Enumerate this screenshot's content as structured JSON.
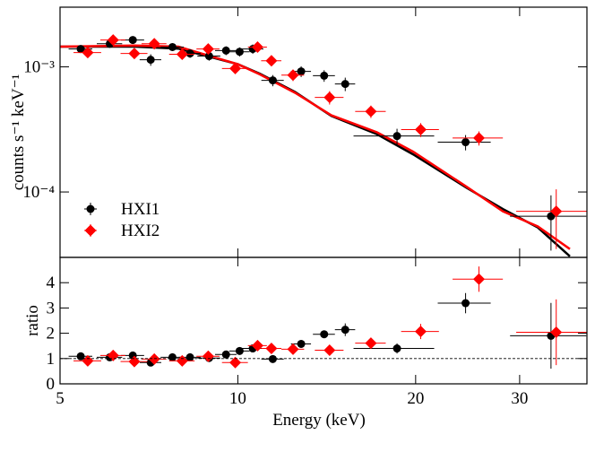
{
  "chart_data": [
    {
      "type": "scatter",
      "ylabel": "counts s⁻¹ keV⁻¹",
      "xlog": true,
      "ylog": true,
      "xlim": [
        5,
        39
      ],
      "ylim": [
        3e-05,
        0.003
      ],
      "xticks": [
        5,
        10,
        20,
        30
      ],
      "yticks": [
        {
          "value": 0.001,
          "label": "10⁻³"
        },
        {
          "value": 0.0001,
          "label": "10⁻⁴"
        }
      ],
      "legend": "lower-left",
      "series": [
        {
          "name": "HXI1",
          "color": "#000000",
          "marker": "circle",
          "x": [
            5.42,
            6.07,
            6.64,
            7.12,
            7.75,
            8.3,
            8.94,
            9.55,
            10.07,
            10.6,
            11.46,
            12.8,
            14.0,
            15.2,
            18.6,
            24.3,
            33.9
          ],
          "xerr": [
            0.25,
            0.3,
            0.3,
            0.3,
            0.35,
            0.35,
            0.4,
            0.4,
            0.4,
            0.45,
            0.5,
            0.5,
            0.6,
            0.6,
            2.9,
            2.5,
            5
          ],
          "values": [
            0.00139,
            0.00153,
            0.00164,
            0.00114,
            0.00144,
            0.00128,
            0.00122,
            0.00135,
            0.00132,
            0.00139,
            0.00078,
            0.00092,
            0.00085,
            0.00073,
            0.00028,
            0.00025,
            6.4e-05
          ],
          "yerr": [
            0.0001,
            0.00011,
            0.00011,
            0.00012,
            0.0001,
            0.0001,
            0.0001,
            0.00011,
            0.00011,
            0.00012,
            8e-05,
            9e-05,
            9e-05,
            9e-05,
            4e-05,
            3.5e-05,
            3e-05
          ]
        },
        {
          "name": "HXI2",
          "color": "#ff0000",
          "marker": "diamond",
          "x": [
            5.57,
            6.15,
            6.68,
            7.22,
            8.05,
            8.91,
            9.9,
            10.8,
            11.4,
            12.4,
            14.3,
            16.8,
            20.4,
            25.6,
            34.6
          ],
          "xerr": [
            0.3,
            0.3,
            0.35,
            0.35,
            0.4,
            0.4,
            0.5,
            0.4,
            0.45,
            0.55,
            0.8,
            1.0,
            1.5,
            2.5,
            5
          ],
          "values": [
            0.0013,
            0.00164,
            0.00128,
            0.00153,
            0.00126,
            0.00139,
            0.00097,
            0.00144,
            0.00112,
            0.00086,
            0.00057,
            0.00044,
            0.000315,
            0.00027,
            7e-05
          ],
          "yerr": [
            0.0001,
            0.00011,
            0.0001,
            0.00011,
            0.0001,
            0.0001,
            9e-05,
            0.00012,
            0.0001,
            9e-05,
            7e-05,
            5e-05,
            4e-05,
            3.5e-05,
            3.5e-05
          ]
        }
      ],
      "model_curves": [
        {
          "color": "#000000",
          "x": [
            5,
            6.69,
            7.93,
            10.0,
            10.9,
            12.5,
            14.4,
            17.2,
            19.8,
            24.4,
            28.1,
            32.2,
            36.5
          ],
          "values": [
            0.00145,
            0.00145,
            0.0014,
            0.00105,
            0.00088,
            0.00063,
            0.000405,
            0.00029,
            0.0002,
            0.000108,
            7.3e-05,
            5.2e-05,
            3.06e-05
          ]
        },
        {
          "color": "#ff0000",
          "x": [
            5,
            6.69,
            7.93,
            10.0,
            10.9,
            12.5,
            14.4,
            17.2,
            19.8,
            24.4,
            28.1,
            32.2,
            36.5
          ],
          "values": [
            0.00145,
            0.00148,
            0.00145,
            0.00105,
            0.00087,
            0.00062,
            0.00041,
            0.0003,
            0.00021,
            0.00011,
            7e-05,
            5.3e-05,
            3.5e-05
          ]
        }
      ]
    },
    {
      "type": "scatter",
      "xlabel": "Energy (keV)",
      "ylabel": "ratio",
      "xlog": true,
      "xlim": [
        5,
        39
      ],
      "ylim": [
        0,
        5
      ],
      "xticks": [
        5,
        10,
        20,
        30
      ],
      "yticks": [
        0,
        1,
        2,
        3,
        4
      ],
      "ref_line": 1,
      "series": [
        {
          "color": "#000000",
          "marker": "circle",
          "x": [
            5.42,
            6.07,
            6.64,
            7.12,
            7.75,
            8.3,
            8.94,
            9.55,
            10.07,
            10.6,
            11.46,
            12.8,
            14.0,
            15.2,
            18.6,
            24.3,
            33.9
          ],
          "xerr": [
            0.25,
            0.3,
            0.3,
            0.3,
            0.35,
            0.35,
            0.4,
            0.4,
            0.4,
            0.45,
            0.5,
            0.5,
            0.6,
            0.6,
            2.9,
            2.5,
            5
          ],
          "values": [
            1.09,
            1.05,
            1.12,
            0.84,
            1.05,
            1.05,
            1.02,
            1.16,
            1.3,
            1.4,
            0.98,
            1.58,
            1.96,
            2.14,
            1.4,
            3.19,
            1.9
          ],
          "yerr": [
            0.08,
            0.08,
            0.08,
            0.08,
            0.08,
            0.08,
            0.08,
            0.1,
            0.1,
            0.1,
            0.1,
            0.15,
            0.15,
            0.25,
            0.2,
            0.4,
            1.3
          ]
        },
        {
          "color": "#ff0000",
          "marker": "diamond",
          "x": [
            5.57,
            6.15,
            6.68,
            7.22,
            8.05,
            8.91,
            9.9,
            10.8,
            11.4,
            12.4,
            14.3,
            16.8,
            20.4,
            25.6,
            34.6
          ],
          "xerr": [
            0.3,
            0.3,
            0.35,
            0.35,
            0.4,
            0.4,
            0.5,
            0.4,
            0.45,
            0.55,
            0.8,
            1.0,
            1.5,
            2.5,
            5
          ],
          "values": [
            0.91,
            1.12,
            0.88,
            0.98,
            0.91,
            1.09,
            0.84,
            1.51,
            1.4,
            1.37,
            1.33,
            1.61,
            2.07,
            4.14,
            2.04
          ],
          "yerr": [
            0.07,
            0.08,
            0.07,
            0.08,
            0.07,
            0.08,
            0.08,
            0.1,
            0.1,
            0.12,
            0.15,
            0.2,
            0.3,
            0.5,
            1.3
          ]
        }
      ]
    }
  ]
}
